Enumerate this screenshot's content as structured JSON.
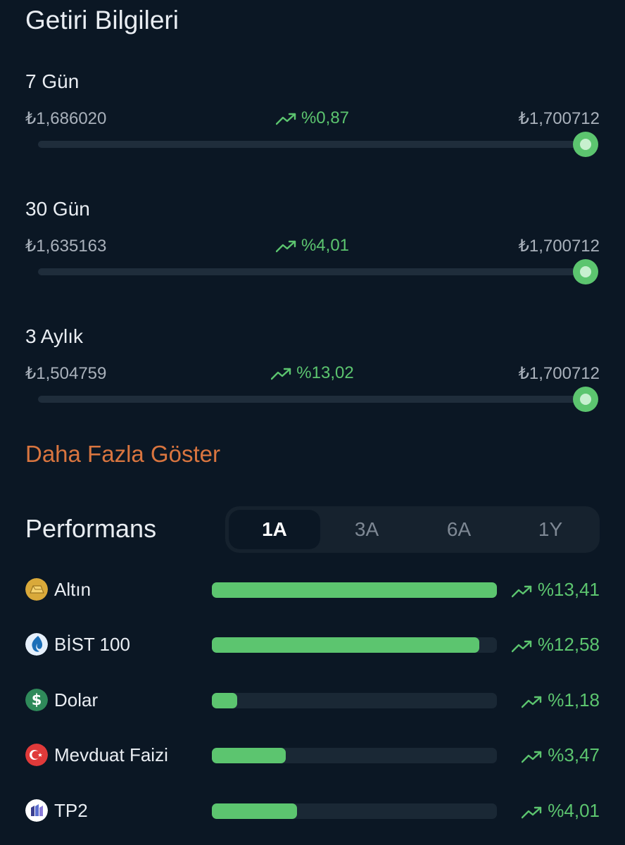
{
  "page": {
    "title": "Getiri Bilgileri"
  },
  "periods": [
    {
      "label": "7 Gün",
      "start": "₺1,686020",
      "change": "%0,87",
      "end": "₺1,700712",
      "position": 1.0
    },
    {
      "label": "30 Gün",
      "start": "₺1,635163",
      "change": "%4,01",
      "end": "₺1,700712",
      "position": 1.0
    },
    {
      "label": "3 Aylık",
      "start": "₺1,504759",
      "change": "%13,02",
      "end": "₺1,700712",
      "position": 1.0
    }
  ],
  "more_link": "Daha Fazla Göster",
  "performance": {
    "title": "Performans",
    "tabs": [
      "1A",
      "3A",
      "6A",
      "1Y"
    ],
    "active_tab": "1A",
    "items": [
      {
        "name": "Altın",
        "icon": "gold-icon",
        "change": "%13,41",
        "value": 13.41
      },
      {
        "name": "BİST 100",
        "icon": "bist-icon",
        "change": "%12,58",
        "value": 12.58
      },
      {
        "name": "Dolar",
        "icon": "dollar-icon",
        "change": "%1,18",
        "value": 1.18
      },
      {
        "name": "Mevduat Faizi",
        "icon": "turkey-flag-icon",
        "change": "%3,47",
        "value": 3.47
      },
      {
        "name": "TP2",
        "icon": "tp2-icon",
        "change": "%4,01",
        "value": 4.01
      }
    ]
  },
  "colors": {
    "background": "#0b1724",
    "positive": "#5cc56f",
    "accent": "#d9753f",
    "track": "#1f2d3b"
  }
}
